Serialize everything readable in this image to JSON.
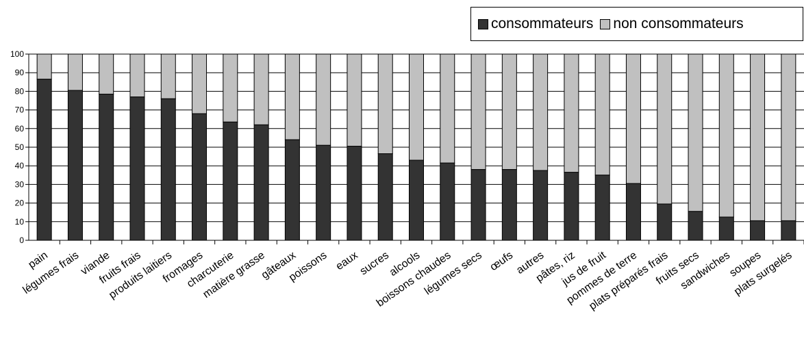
{
  "colors": {
    "consommateurs": "#333333",
    "non_consommateurs": "#c0c0c0",
    "axis": "#000000"
  },
  "legend": {
    "items": [
      "consommateurs",
      "non consommateurs"
    ],
    "placement": "top-right"
  },
  "chart_data": {
    "type": "bar",
    "stacked": true,
    "categories": [
      "pain",
      "légumes frais",
      "viande",
      "fruits frais",
      "produits laitiers",
      "fromages",
      "charcuterie",
      "matière grasse",
      "gâteaux",
      "poissons",
      "eaux",
      "sucres",
      "alcools",
      "boissons chaudes",
      "légumes secs",
      "œufs",
      "autres",
      "pâtes, riz",
      "jus de fruit",
      "pommes de terre",
      "plats préparés frais",
      "fruits secs",
      "sandwiches",
      "soupes",
      "plats surgelés"
    ],
    "series": [
      {
        "name": "consommateurs",
        "values": [
          86.5,
          80.5,
          78.5,
          77,
          76,
          68,
          63.5,
          62,
          54,
          51,
          50.5,
          46.5,
          43,
          41.5,
          38,
          38,
          37.5,
          36.5,
          35,
          30.5,
          19.5,
          15.5,
          12.5,
          10.5,
          10.5
        ]
      },
      {
        "name": "non consommateurs",
        "values": [
          13.5,
          19.5,
          21.5,
          23,
          24,
          32,
          36.5,
          38,
          46,
          49,
          49.5,
          53.5,
          57,
          58.5,
          62,
          62,
          62.5,
          63.5,
          65,
          69.5,
          80.5,
          84.5,
          87.5,
          89.5,
          89.5
        ]
      }
    ],
    "ylim": [
      0,
      100
    ],
    "yticks": [
      "0",
      "10",
      "20",
      "30",
      "40",
      "50",
      "60",
      "70",
      "80",
      "90",
      "100"
    ],
    "grid": true,
    "title": "",
    "xlabel": "",
    "ylabel": ""
  }
}
